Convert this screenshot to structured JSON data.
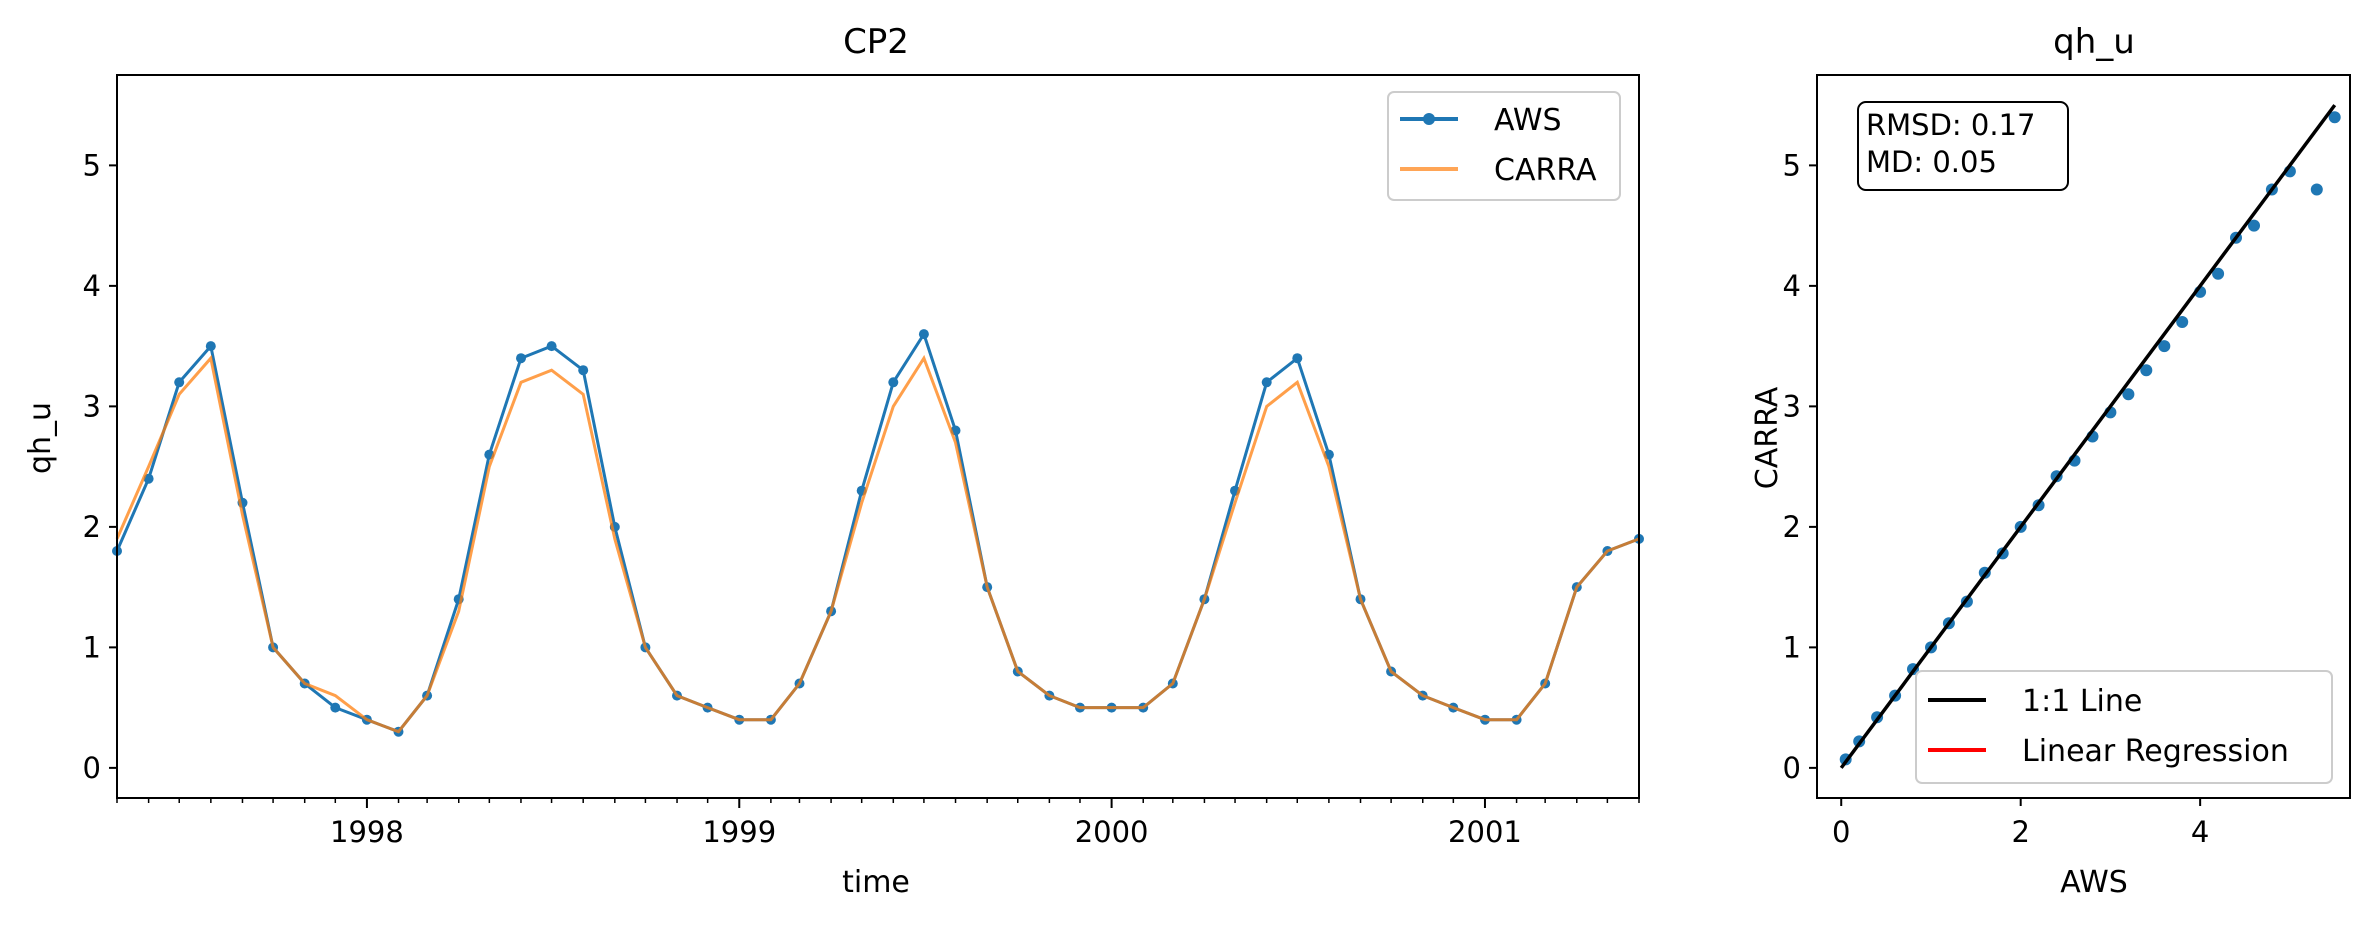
{
  "chart_data": [
    {
      "type": "line",
      "title": "CP2",
      "xlabel": "time",
      "ylabel": "qh_u",
      "x_range": [
        "1997-05-01",
        "2001-06-01"
      ],
      "ylim": [
        -0.25,
        5.75
      ],
      "x_ticks": [
        "1998",
        "1999",
        "2000",
        "2001"
      ],
      "y_ticks": [
        "0",
        "1",
        "2",
        "3",
        "4",
        "5"
      ],
      "legend": {
        "placement": "top-right",
        "entries": [
          "AWS",
          "CARRA"
        ]
      },
      "colors": {
        "AWS": "#1f77b4",
        "CARRA": "#ff7f0e"
      },
      "series": [
        {
          "name": "AWS",
          "x": [
            "1997-05-01",
            "1997-06-01",
            "1997-07-01",
            "1997-08-01",
            "1997-09-01",
            "1997-10-01",
            "1997-11-01",
            "1997-12-01",
            "1998-01-01",
            "1998-02-01",
            "1998-03-01",
            "1998-04-01",
            "1998-05-01",
            "1998-06-01",
            "1998-07-01",
            "1998-08-01",
            "1998-09-01",
            "1998-10-01",
            "1998-11-01",
            "1998-12-01",
            "1999-01-01",
            "1999-02-01",
            "1999-03-01",
            "1999-04-01",
            "1999-05-01",
            "1999-06-01",
            "1999-07-01",
            "1999-08-01",
            "1999-09-01",
            "1999-10-01",
            "1999-11-01",
            "1999-12-01",
            "2000-01-01",
            "2000-02-01",
            "2000-03-01",
            "2000-04-01",
            "2000-05-01",
            "2000-06-01",
            "2000-07-01",
            "2000-08-01",
            "2000-09-01",
            "2000-10-01",
            "2000-11-01",
            "2000-12-01",
            "2001-01-01",
            "2001-02-01",
            "2001-03-01",
            "2001-04-01",
            "2001-05-01",
            "2001-06-01"
          ],
          "values": [
            1.8,
            2.4,
            3.2,
            3.5,
            2.2,
            1.0,
            0.7,
            0.5,
            0.4,
            0.3,
            0.6,
            1.4,
            2.6,
            3.4,
            3.5,
            3.3,
            2.0,
            1.0,
            0.6,
            0.5,
            0.4,
            0.4,
            0.7,
            1.3,
            2.3,
            3.2,
            3.6,
            2.8,
            1.5,
            0.8,
            0.6,
            0.5,
            0.5,
            0.5,
            0.7,
            1.4,
            2.3,
            3.2,
            3.4,
            2.6,
            1.4,
            0.8,
            0.6,
            0.5,
            0.4,
            0.4,
            0.7,
            1.5,
            1.8,
            1.9
          ]
        },
        {
          "name": "CARRA",
          "x": [
            "1997-05-01",
            "1997-06-01",
            "1997-07-01",
            "1997-08-01",
            "1997-09-01",
            "1997-10-01",
            "1997-11-01",
            "1997-12-01",
            "1998-01-01",
            "1998-02-01",
            "1998-03-01",
            "1998-04-01",
            "1998-05-01",
            "1998-06-01",
            "1998-07-01",
            "1998-08-01",
            "1998-09-01",
            "1998-10-01",
            "1998-11-01",
            "1998-12-01",
            "1999-01-01",
            "1999-02-01",
            "1999-03-01",
            "1999-04-01",
            "1999-05-01",
            "1999-06-01",
            "1999-07-01",
            "1999-08-01",
            "1999-09-01",
            "1999-10-01",
            "1999-11-01",
            "1999-12-01",
            "2000-01-01",
            "2000-02-01",
            "2000-03-01",
            "2000-04-01",
            "2000-05-01",
            "2000-06-01",
            "2000-07-01",
            "2000-08-01",
            "2000-09-01",
            "2000-10-01",
            "2000-11-01",
            "2000-12-01",
            "2001-01-01",
            "2001-02-01",
            "2001-03-01",
            "2001-04-01",
            "2001-05-01",
            "2001-06-01"
          ],
          "values": [
            1.9,
            2.5,
            3.1,
            3.4,
            2.1,
            1.0,
            0.7,
            0.6,
            0.4,
            0.3,
            0.6,
            1.3,
            2.5,
            3.2,
            3.3,
            3.1,
            1.9,
            1.0,
            0.6,
            0.5,
            0.4,
            0.4,
            0.7,
            1.3,
            2.2,
            3.0,
            3.4,
            2.7,
            1.5,
            0.8,
            0.6,
            0.5,
            0.5,
            0.5,
            0.7,
            1.4,
            2.2,
            3.0,
            3.2,
            2.5,
            1.4,
            0.8,
            0.6,
            0.5,
            0.4,
            0.4,
            0.7,
            1.5,
            1.8,
            1.9
          ]
        }
      ]
    },
    {
      "type": "scatter",
      "title": "qh_u",
      "xlabel": "AWS",
      "ylabel": "CARRA",
      "xlim": [
        -0.27,
        5.67
      ],
      "ylim": [
        -0.25,
        5.75
      ],
      "x_ticks": [
        "0",
        "2",
        "4"
      ],
      "y_ticks": [
        "0",
        "1",
        "2",
        "3",
        "4",
        "5"
      ],
      "annotation": [
        "RMSD: 0.17",
        "MD: 0.05"
      ],
      "legend": {
        "placement": "bottom-right",
        "entries": [
          "1:1 Line",
          "Linear Regression"
        ]
      },
      "colors": {
        "points": "#1f77b4",
        "one_to_one": "#000000",
        "regression": "#ff0000"
      },
      "one_to_one_line": {
        "x": [
          0,
          5.5
        ],
        "y": [
          0,
          5.5
        ]
      },
      "points": {
        "x": [
          0.05,
          0.2,
          0.4,
          0.6,
          0.8,
          1.0,
          1.2,
          1.4,
          1.6,
          1.8,
          2.0,
          2.2,
          2.4,
          2.6,
          2.8,
          3.0,
          3.2,
          3.4,
          3.6,
          3.8,
          4.0,
          4.2,
          4.4,
          4.6,
          4.8,
          5.0,
          5.3,
          5.5
        ],
        "y": [
          0.07,
          0.22,
          0.42,
          0.6,
          0.82,
          1.0,
          1.2,
          1.38,
          1.62,
          1.78,
          2.0,
          2.18,
          2.42,
          2.55,
          2.75,
          2.95,
          3.1,
          3.3,
          3.5,
          3.7,
          3.95,
          4.1,
          4.4,
          4.5,
          4.8,
          4.95,
          4.8,
          5.4
        ]
      }
    }
  ]
}
